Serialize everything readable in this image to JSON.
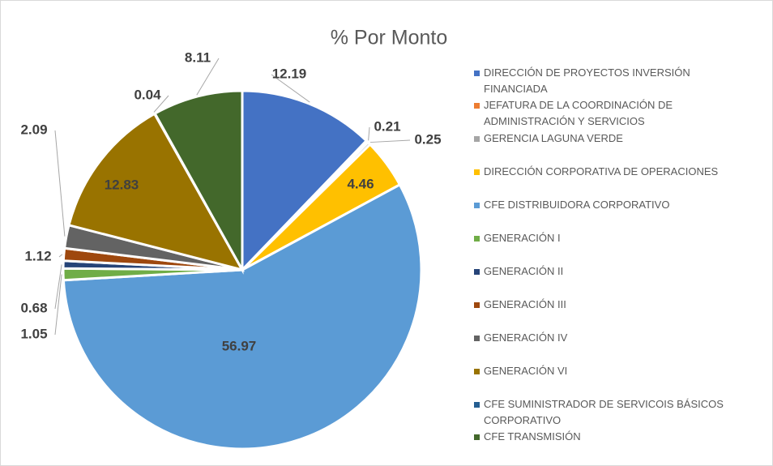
{
  "chart_data": {
    "type": "pie",
    "title": "% Por Monto",
    "categories": [
      "DIRECCIÓN DE PROYECTOS INVERSIÓN FINANCIADA",
      "JEFATURA DE LA COORDINACIÓN DE ADMINISTRACIÓN Y SERVICIOS",
      "GERENCIA LAGUNA VERDE",
      "DIRECCIÓN CORPORATIVA DE OPERACIONES",
      "CFE DISTRIBUIDORA CORPORATIVO",
      "GENERACIÓN I",
      "GENERACIÓN II",
      "GENERACIÓN III",
      "GENERACIÓN IV",
      "GENERACIÓN VI",
      "CFE SUMINISTRADOR DE SERVICOIS BÁSICOS CORPORATIVO",
      "CFE TRANSMISIÓN"
    ],
    "values": [
      12.19,
      0.21,
      0.25,
      4.46,
      56.97,
      1.05,
      0.68,
      1.12,
      2.09,
      12.83,
      0.04,
      8.11
    ],
    "colors": [
      "#4472c4",
      "#ed7d31",
      "#a5a5a5",
      "#ffc000",
      "#5b9bd5",
      "#70ad47",
      "#264478",
      "#9e480e",
      "#636363",
      "#997300",
      "#255e91",
      "#43682b"
    ],
    "legend": "right"
  }
}
